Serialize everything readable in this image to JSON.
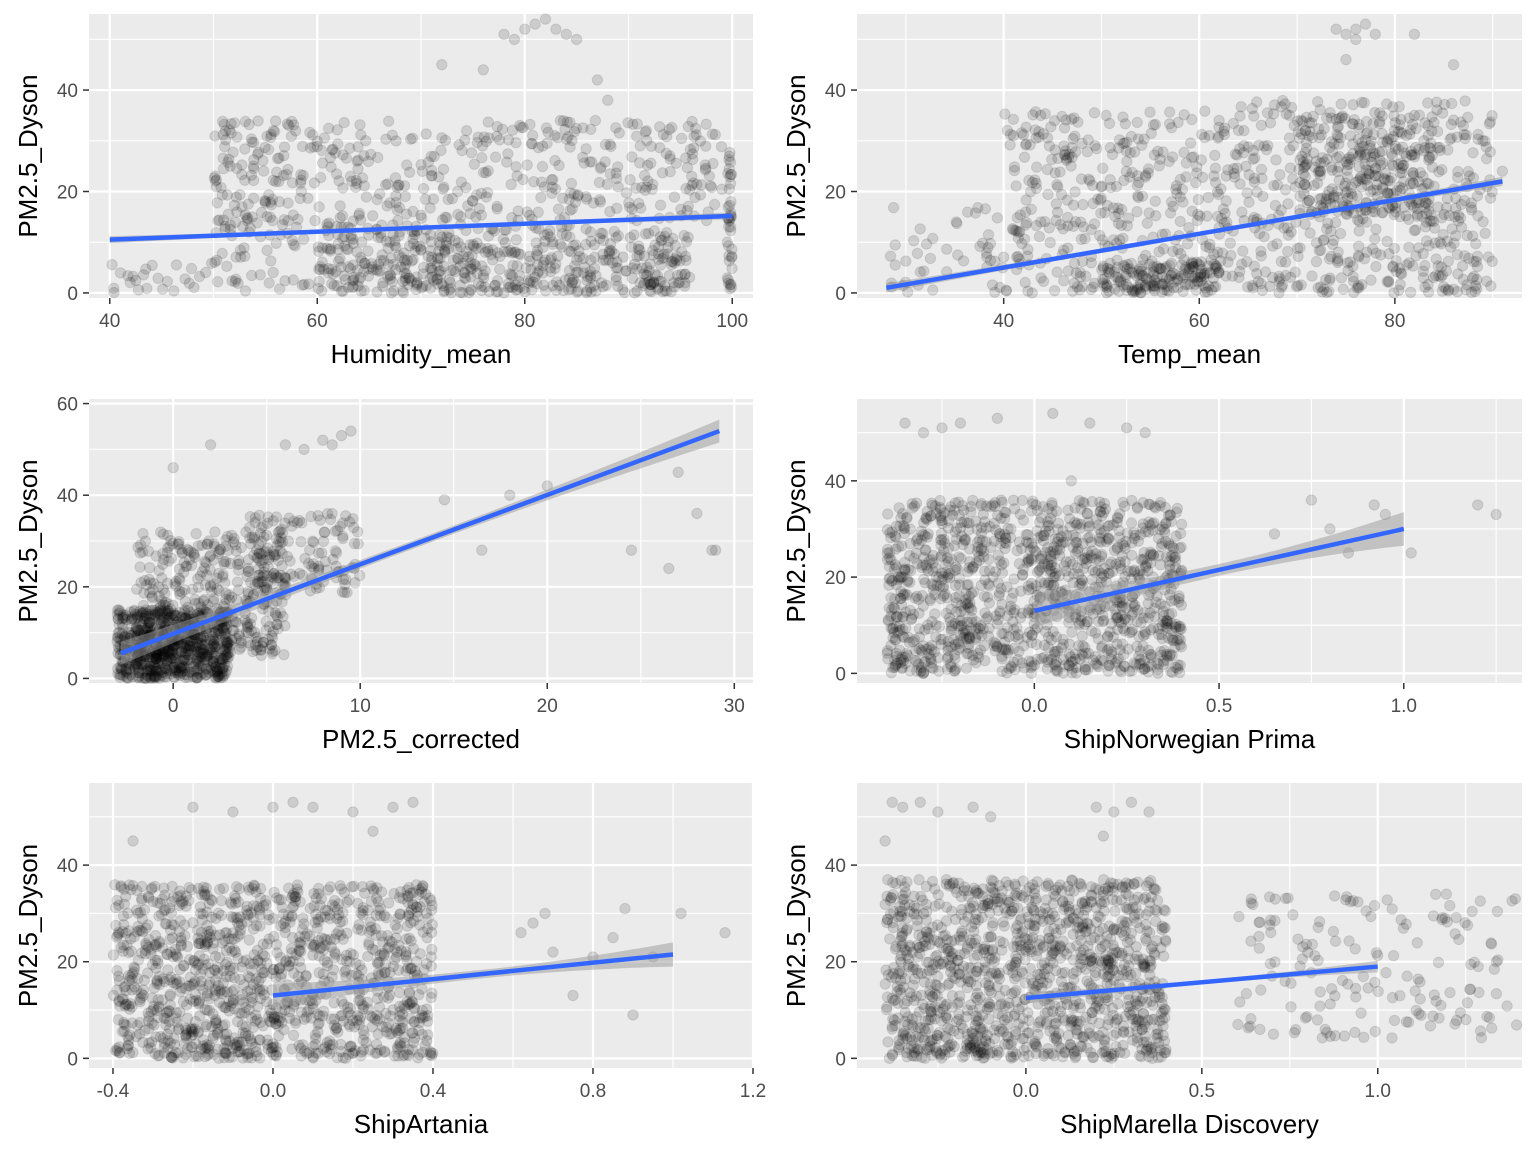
{
  "figure": {
    "panel_background": "#ebebeb",
    "grid_color": "#ffffff",
    "point_color": "#000000",
    "point_opacity": 0.13,
    "line_color": "#3366ff",
    "band_color": "#999999",
    "band_opacity": 0.5
  },
  "chart_data": [
    {
      "type": "scatter",
      "xlabel": "Humidity_mean",
      "ylabel": "PM2.5_Dyson",
      "xlim": [
        38,
        102
      ],
      "ylim": [
        -1,
        55
      ],
      "xticks": [
        40,
        60,
        80,
        100
      ],
      "xtick_labels": [
        "40",
        "60",
        "80",
        "100"
      ],
      "yticks": [
        0,
        20,
        40
      ],
      "ytick_labels": [
        "0",
        "20",
        "40"
      ],
      "points": [
        {
          "cluster": true,
          "x": [
            60,
            96
          ],
          "y": [
            0,
            12
          ],
          "n": 500
        },
        {
          "cluster": true,
          "x": [
            50,
            99
          ],
          "y": [
            12,
            34
          ],
          "n": 450
        },
        {
          "cluster": true,
          "x": [
            40,
            50
          ],
          "y": [
            0,
            6
          ],
          "n": 25
        },
        {
          "cluster": true,
          "x": [
            50,
            60
          ],
          "y": [
            0,
            34
          ],
          "n": 90
        },
        {
          "cluster": true,
          "x": [
            99.5,
            100
          ],
          "y": [
            0,
            28
          ],
          "n": 40
        },
        {
          "x": [
            78,
            79,
            80,
            81,
            82,
            83,
            84,
            85,
            87,
            88,
            76,
            72
          ],
          "y": [
            51,
            50,
            52,
            53,
            54,
            52,
            51,
            50,
            42,
            38,
            44,
            45
          ]
        }
      ],
      "fit": {
        "x": [
          40,
          100
        ],
        "y": [
          10.5,
          15.2
        ],
        "se": 0.7
      }
    },
    {
      "type": "scatter",
      "xlabel": "Temp_mean",
      "ylabel": "PM2.5_Dyson",
      "xlim": [
        25,
        93
      ],
      "ylim": [
        -1,
        55
      ],
      "xticks": [
        40,
        60,
        80
      ],
      "xtick_labels": [
        "40",
        "60",
        "80"
      ],
      "yticks": [
        0,
        20,
        40
      ],
      "ytick_labels": [
        "0",
        "20",
        "40"
      ],
      "points": [
        {
          "cluster": true,
          "x": [
            28,
            40
          ],
          "y": [
            0,
            18
          ],
          "n": 45
        },
        {
          "cluster": true,
          "x": [
            40,
            62
          ],
          "y": [
            0,
            36
          ],
          "n": 360
        },
        {
          "cluster": true,
          "x": [
            50,
            62
          ],
          "y": [
            0,
            6
          ],
          "n": 120
        },
        {
          "cluster": true,
          "x": [
            62,
            90
          ],
          "y": [
            0,
            38
          ],
          "n": 520
        },
        {
          "cluster": true,
          "x": [
            70,
            84
          ],
          "y": [
            15,
            35
          ],
          "n": 200
        },
        {
          "x": [
            74,
            75,
            76,
            77,
            78,
            76,
            75,
            86,
            82,
            87,
            91
          ],
          "y": [
            52,
            51,
            52,
            53,
            51,
            50,
            46,
            45,
            51,
            33,
            24
          ]
        }
      ],
      "fit": {
        "x": [
          28,
          91
        ],
        "y": [
          1,
          22
        ],
        "se": 0.9
      }
    },
    {
      "type": "scatter",
      "xlabel": "PM2.5_corrected",
      "ylabel": "PM2.5_Dyson",
      "xlim": [
        -4.5,
        31
      ],
      "ylim": [
        -1,
        61
      ],
      "xticks": [
        0,
        10,
        20,
        30
      ],
      "xtick_labels": [
        "0",
        "10",
        "20",
        "30"
      ],
      "yticks": [
        0,
        20,
        40,
        60
      ],
      "ytick_labels": [
        "0",
        "20",
        "40",
        "60"
      ],
      "points": [
        {
          "cluster": true,
          "x": [
            -3,
            3
          ],
          "y": [
            0,
            15
          ],
          "n": 700
        },
        {
          "cluster": true,
          "x": [
            -2,
            6
          ],
          "y": [
            5,
            32
          ],
          "n": 380
        },
        {
          "cluster": true,
          "x": [
            4,
            10
          ],
          "y": [
            18,
            36
          ],
          "n": 140
        },
        {
          "x": [
            6,
            7,
            8,
            8.5,
            9,
            9.5,
            2,
            0,
            16.5,
            14.5,
            18,
            20,
            24.5,
            27,
            28,
            29,
            26.5,
            28.8
          ],
          "y": [
            51,
            50,
            52,
            51,
            53,
            54,
            51,
            46,
            28,
            39,
            40,
            42,
            28,
            45,
            36,
            28,
            24,
            28
          ]
        }
      ],
      "fit": {
        "x": [
          -2.8,
          29.2
        ],
        "y": [
          5.5,
          54
        ],
        "se": 2.5
      }
    },
    {
      "type": "scatter",
      "xlabel": "ShipNorwegian Prima",
      "ylabel": "PM2.5_Dyson",
      "xlim": [
        -0.48,
        1.32
      ],
      "ylim": [
        -2,
        57
      ],
      "xticks": [
        0,
        0.5,
        1
      ],
      "xtick_labels": [
        "0.0",
        "0.5",
        "1.0"
      ],
      "yticks": [
        0,
        20,
        40
      ],
      "ytick_labels": [
        "0",
        "20",
        "40"
      ],
      "points": [
        {
          "cluster": true,
          "x": [
            -0.4,
            0.4
          ],
          "y": [
            0,
            36
          ],
          "n": 1200
        },
        {
          "x": [
            -0.35,
            -0.3,
            -0.25,
            -0.2,
            -0.1,
            0.05,
            0.15,
            0.25,
            0.3,
            0.1
          ],
          "y": [
            52,
            50,
            51,
            52,
            53,
            54,
            52,
            51,
            50,
            40
          ]
        },
        {
          "x": [
            0.65,
            0.75,
            0.8,
            0.85,
            0.92,
            0.95,
            1.02,
            1.2,
            1.25
          ],
          "y": [
            29,
            36,
            30,
            25,
            35,
            33,
            25,
            35,
            33
          ]
        }
      ],
      "fit": {
        "x": [
          0,
          1
        ],
        "y": [
          13,
          30
        ],
        "se": 3.5
      }
    },
    {
      "type": "scatter",
      "xlabel": "ShipArtania",
      "ylabel": "PM2.5_Dyson",
      "xlim": [
        -0.46,
        1.2
      ],
      "ylim": [
        -2,
        57
      ],
      "xticks": [
        -0.4,
        0,
        0.4,
        0.8,
        1.2
      ],
      "xtick_labels": [
        "-0.4",
        "0.0",
        "0.4",
        "0.8",
        "1.2"
      ],
      "yticks": [
        0,
        20,
        40
      ],
      "ytick_labels": [
        "0",
        "20",
        "40"
      ],
      "points": [
        {
          "cluster": true,
          "x": [
            -0.4,
            0.4
          ],
          "y": [
            0,
            36
          ],
          "n": 1200
        },
        {
          "x": [
            -0.2,
            -0.1,
            0,
            0.05,
            0.1,
            0.2,
            0.3,
            0.35,
            -0.35,
            0.25
          ],
          "y": [
            52,
            51,
            52,
            53,
            52,
            51,
            52,
            53,
            45,
            47
          ]
        },
        {
          "x": [
            0.62,
            0.65,
            0.68,
            0.7,
            0.75,
            0.8,
            0.85,
            0.88,
            0.9,
            0.95,
            1.02,
            1.13
          ],
          "y": [
            26,
            28,
            30,
            22,
            13,
            21,
            25,
            31,
            9,
            21,
            30,
            26
          ]
        }
      ],
      "fit": {
        "x": [
          0,
          1
        ],
        "y": [
          13,
          21.5
        ],
        "se": 2.5
      }
    },
    {
      "type": "scatter",
      "xlabel": "ShipMarella Discovery",
      "ylabel": "PM2.5_Dyson",
      "xlim": [
        -0.48,
        1.41
      ],
      "ylim": [
        -2,
        57
      ],
      "xticks": [
        0,
        0.5,
        1
      ],
      "xtick_labels": [
        "0.0",
        "0.5",
        "1.0"
      ],
      "yticks": [
        0,
        20,
        40
      ],
      "ytick_labels": [
        "0",
        "20",
        "40"
      ],
      "points": [
        {
          "cluster": true,
          "x": [
            -0.4,
            0.4
          ],
          "y": [
            0,
            37
          ],
          "n": 1200
        },
        {
          "cluster": true,
          "x": [
            0.6,
            1.4
          ],
          "y": [
            4,
            34
          ],
          "n": 160
        },
        {
          "x": [
            -0.38,
            -0.35,
            -0.3,
            -0.25,
            -0.15,
            -0.1,
            0.2,
            0.25,
            0.3,
            0.35,
            -0.4,
            0.22
          ],
          "y": [
            53,
            52,
            53,
            51,
            52,
            50,
            52,
            51,
            53,
            51,
            45,
            46
          ]
        }
      ],
      "fit": {
        "x": [
          0,
          1
        ],
        "y": [
          12.5,
          19
        ],
        "se": 1.2
      }
    }
  ]
}
